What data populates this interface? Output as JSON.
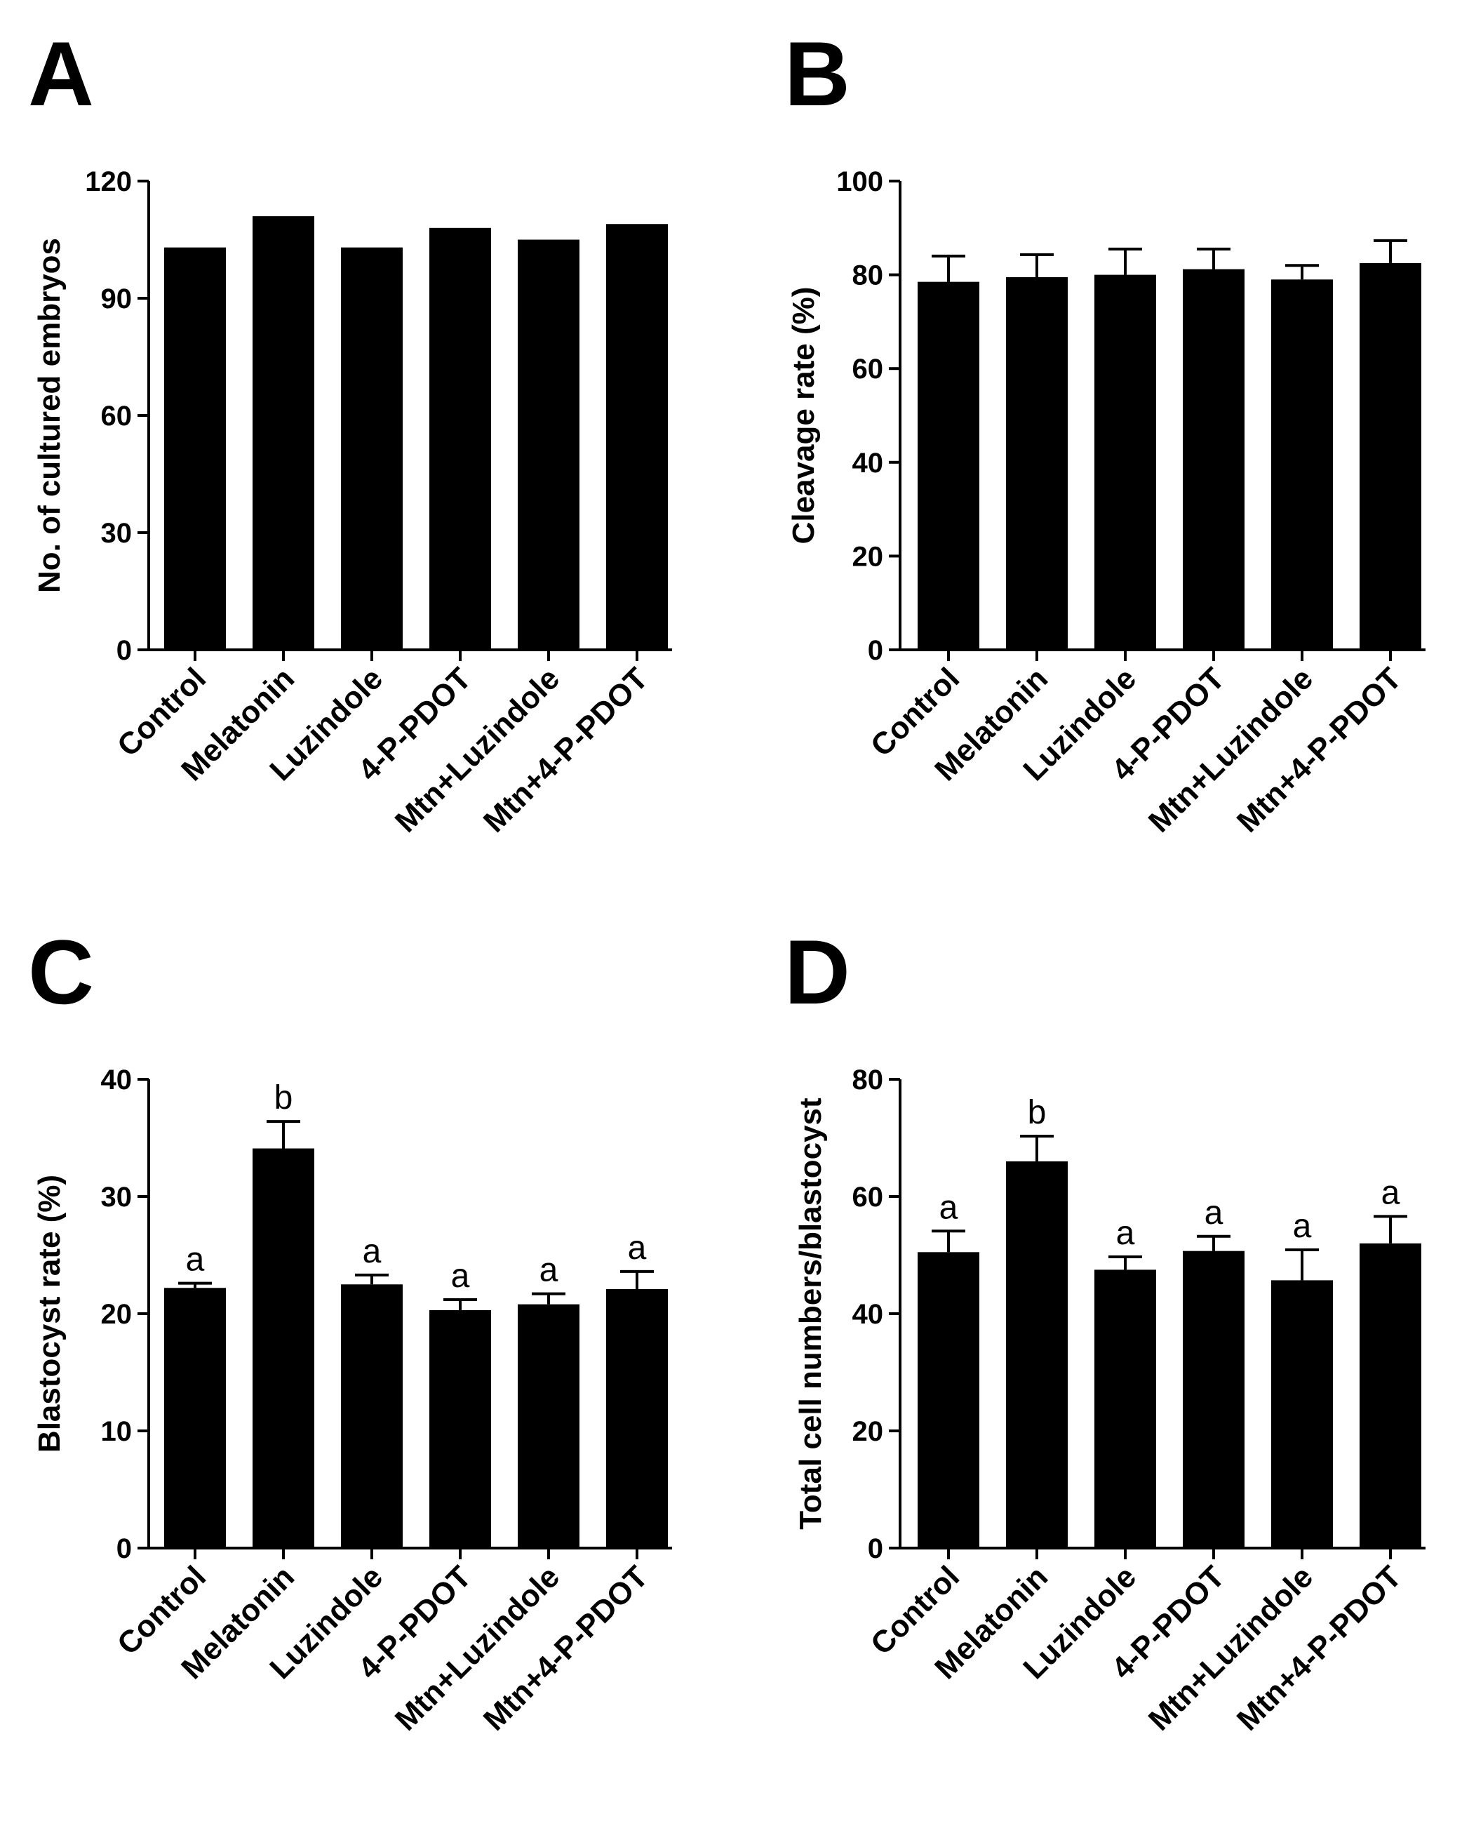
{
  "chart_data": [
    {
      "panel": "A",
      "type": "bar",
      "ylabel": "No. of cultured embryos",
      "ylim": [
        0,
        120
      ],
      "yticks": [
        0,
        30,
        60,
        90,
        120
      ],
      "categories": [
        "Control",
        "Melatonin",
        "Luzindole",
        "4-P-PDOT",
        "Mtn+Luzindole",
        "Mtn+4-P-PDOT"
      ],
      "values": [
        103,
        111,
        103,
        108,
        105,
        109
      ],
      "errors": [],
      "significance": []
    },
    {
      "panel": "B",
      "type": "bar",
      "ylabel": "Cleavage rate (%)",
      "ylim": [
        0,
        100
      ],
      "yticks": [
        0,
        20,
        40,
        60,
        80,
        100
      ],
      "categories": [
        "Control",
        "Melatonin",
        "Luzindole",
        "4-P-PDOT",
        "Mtn+Luzindole",
        "Mtn+4-P-PDOT"
      ],
      "values": [
        78.5,
        79.5,
        80,
        81.2,
        79,
        82.5
      ],
      "errors": [
        5.5,
        4.8,
        5.5,
        4.3,
        3.0,
        4.8
      ],
      "significance": []
    },
    {
      "panel": "C",
      "type": "bar",
      "ylabel": "Blastocyst rate (%)",
      "ylim": [
        0,
        40
      ],
      "yticks": [
        0,
        10,
        20,
        30,
        40
      ],
      "categories": [
        "Control",
        "Melatonin",
        "Luzindole",
        "4-P-PDOT",
        "Mtn+Luzindole",
        "Mtn+4-P-PDOT"
      ],
      "values": [
        22.2,
        34.1,
        22.5,
        20.3,
        20.8,
        22.1
      ],
      "errors": [
        0.4,
        2.3,
        0.8,
        0.9,
        0.9,
        1.5
      ],
      "significance": [
        "a",
        "b",
        "a",
        "a",
        "a",
        "a"
      ]
    },
    {
      "panel": "D",
      "type": "bar",
      "ylabel": "Total cell numbers/blastocyst",
      "ylim": [
        0,
        80
      ],
      "yticks": [
        0,
        20,
        40,
        60,
        80
      ],
      "categories": [
        "Control",
        "Melatonin",
        "Luzindole",
        "4-P-PDOT",
        "Mtn+Luzindole",
        "Mtn+4-P-PDOT"
      ],
      "values": [
        50.5,
        66,
        47.5,
        50.7,
        45.7,
        52
      ],
      "errors": [
        3.6,
        4.3,
        2.2,
        2.5,
        5.2,
        4.6
      ],
      "significance": [
        "a",
        "b",
        "a",
        "a",
        "a",
        "a"
      ]
    }
  ]
}
